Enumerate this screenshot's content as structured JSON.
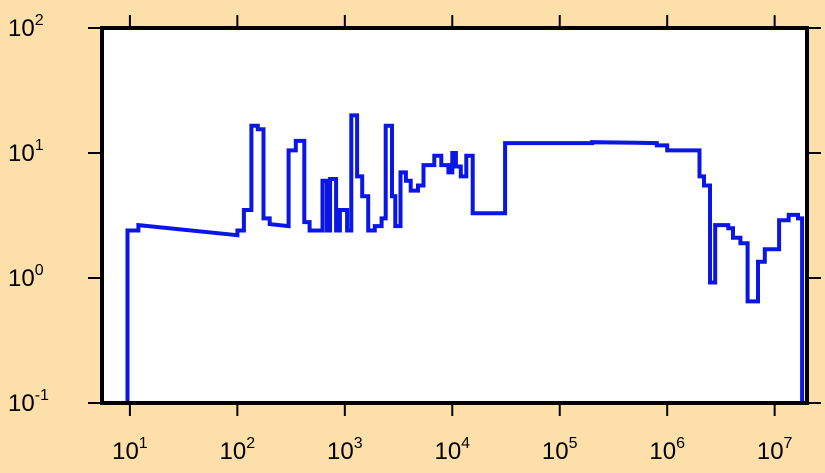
{
  "chart_data": {
    "type": "line",
    "style": "step",
    "x_scale": "log",
    "y_scale": "log",
    "xlim": [
      5.5,
      20000000
    ],
    "ylim": [
      0.1,
      100
    ],
    "grid": false,
    "legend": "none",
    "colors": {
      "background": "#fddfa9",
      "plot_area": "#ffffff",
      "series": "#0a16e6",
      "axes": "#000000"
    },
    "x_ticks": [
      {
        "value": 10,
        "base": "10",
        "exp": "1"
      },
      {
        "value": 100,
        "base": "10",
        "exp": "2"
      },
      {
        "value": 1000,
        "base": "10",
        "exp": "3"
      },
      {
        "value": 10000,
        "base": "10",
        "exp": "4"
      },
      {
        "value": 100000,
        "base": "10",
        "exp": "5"
      },
      {
        "value": 1000000,
        "base": "10",
        "exp": "6"
      },
      {
        "value": 10000000,
        "base": "10",
        "exp": "7"
      }
    ],
    "y_ticks": [
      {
        "value": 0.1,
        "base": "10",
        "exp": "-1"
      },
      {
        "value": 1,
        "base": "10",
        "exp": "0"
      },
      {
        "value": 10,
        "base": "10",
        "exp": "1"
      },
      {
        "value": 100,
        "base": "10",
        "exp": "2"
      }
    ],
    "series": [
      {
        "points": [
          [
            9.5,
            0.1
          ],
          [
            9.5,
            2.4
          ],
          [
            12,
            2.4
          ],
          [
            12,
            2.65
          ],
          [
            100,
            2.2
          ],
          [
            100,
            2.4
          ],
          [
            115,
            2.4
          ],
          [
            115,
            3.5
          ],
          [
            135,
            3.5
          ],
          [
            135,
            16.5
          ],
          [
            155,
            16.5
          ],
          [
            155,
            15.5
          ],
          [
            175,
            15.5
          ],
          [
            175,
            3.0
          ],
          [
            200,
            3.0
          ],
          [
            200,
            2.7
          ],
          [
            300,
            2.6
          ],
          [
            300,
            10.5
          ],
          [
            350,
            10.5
          ],
          [
            350,
            12.5
          ],
          [
            420,
            12.5
          ],
          [
            420,
            2.8
          ],
          [
            470,
            2.8
          ],
          [
            470,
            2.4
          ],
          [
            620,
            2.4
          ],
          [
            620,
            6.0
          ],
          [
            680,
            6.0
          ],
          [
            680,
            2.4
          ],
          [
            730,
            2.4
          ],
          [
            730,
            6.2
          ],
          [
            830,
            6.2
          ],
          [
            830,
            2.4
          ],
          [
            900,
            2.4
          ],
          [
            900,
            3.5
          ],
          [
            1050,
            3.5
          ],
          [
            1050,
            2.4
          ],
          [
            1150,
            2.4
          ],
          [
            1150,
            20.0
          ],
          [
            1300,
            20.0
          ],
          [
            1300,
            6.5
          ],
          [
            1450,
            6.5
          ],
          [
            1450,
            4.5
          ],
          [
            1650,
            4.5
          ],
          [
            1650,
            2.4
          ],
          [
            1900,
            2.4
          ],
          [
            1900,
            2.6
          ],
          [
            2200,
            2.6
          ],
          [
            2200,
            3.0
          ],
          [
            2400,
            3.0
          ],
          [
            2400,
            16.5
          ],
          [
            2750,
            16.5
          ],
          [
            2750,
            4.5
          ],
          [
            2950,
            4.5
          ],
          [
            2950,
            2.6
          ],
          [
            3300,
            2.6
          ],
          [
            3300,
            7.0
          ],
          [
            3700,
            7.0
          ],
          [
            3700,
            6.0
          ],
          [
            4100,
            6.0
          ],
          [
            4100,
            5.0
          ],
          [
            4800,
            5.0
          ],
          [
            4800,
            5.5
          ],
          [
            5400,
            5.5
          ],
          [
            5400,
            8.0
          ],
          [
            6800,
            8.0
          ],
          [
            6800,
            9.5
          ],
          [
            7900,
            9.5
          ],
          [
            7900,
            8.0
          ],
          [
            9200,
            8.0
          ],
          [
            9200,
            7.0
          ],
          [
            10000,
            7.0
          ],
          [
            10000,
            10.0
          ],
          [
            10800,
            10.0
          ],
          [
            10800,
            7.8
          ],
          [
            12000,
            7.8
          ],
          [
            12000,
            6.5
          ],
          [
            13500,
            6.5
          ],
          [
            13500,
            9.5
          ],
          [
            15500,
            9.5
          ],
          [
            15500,
            3.3
          ],
          [
            31000,
            3.3
          ],
          [
            31000,
            12.0
          ],
          [
            200000,
            12.0
          ],
          [
            200000,
            12.2
          ],
          [
            800000,
            12.0
          ],
          [
            800000,
            11.5
          ],
          [
            1000000,
            11.5
          ],
          [
            1000000,
            10.5
          ],
          [
            2000000,
            10.5
          ],
          [
            2000000,
            6.5
          ],
          [
            2200000,
            6.5
          ],
          [
            2200000,
            5.5
          ],
          [
            2500000,
            5.5
          ],
          [
            2500000,
            0.92
          ],
          [
            2800000,
            0.92
          ],
          [
            2800000,
            2.65
          ],
          [
            3700000,
            2.65
          ],
          [
            3700000,
            2.5
          ],
          [
            4100000,
            2.5
          ],
          [
            4100000,
            2.1
          ],
          [
            4800000,
            2.1
          ],
          [
            4800000,
            1.9
          ],
          [
            5600000,
            1.9
          ],
          [
            5600000,
            0.65
          ],
          [
            7000000,
            0.65
          ],
          [
            7000000,
            1.35
          ],
          [
            8100000,
            1.35
          ],
          [
            8100000,
            1.7
          ],
          [
            11000000,
            1.7
          ],
          [
            11000000,
            2.9
          ],
          [
            13500000,
            2.9
          ],
          [
            13500000,
            3.2
          ],
          [
            16500000,
            3.2
          ],
          [
            16500000,
            3.0
          ],
          [
            18000000,
            3.0
          ],
          [
            18000000,
            0.1
          ]
        ]
      }
    ]
  }
}
